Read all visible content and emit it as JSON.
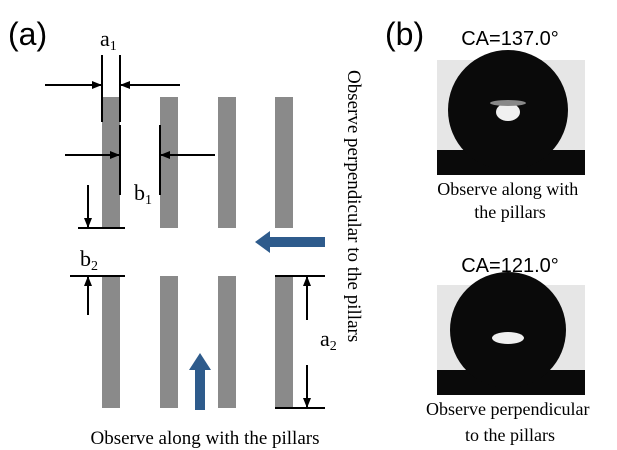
{
  "panel_a": {
    "label": "(a)",
    "a1": {
      "main": "a",
      "sub": "1"
    },
    "b1": {
      "main": "b",
      "sub": "1"
    },
    "b2": {
      "main": "b",
      "sub": "2"
    },
    "a2": {
      "main": "a",
      "sub": "2"
    },
    "side_caption": "Observe perpendicular to the pillars",
    "bottom_caption": "Observe along with the pillars"
  },
  "panel_b": {
    "label": "(b)",
    "images": [
      {
        "ca": "CA=137.0°",
        "caption": [
          "Observe along with",
          "the pillars"
        ]
      },
      {
        "ca": "CA=121.0°",
        "caption": [
          "Observe perpendicular",
          "to the pillars"
        ]
      }
    ]
  }
}
